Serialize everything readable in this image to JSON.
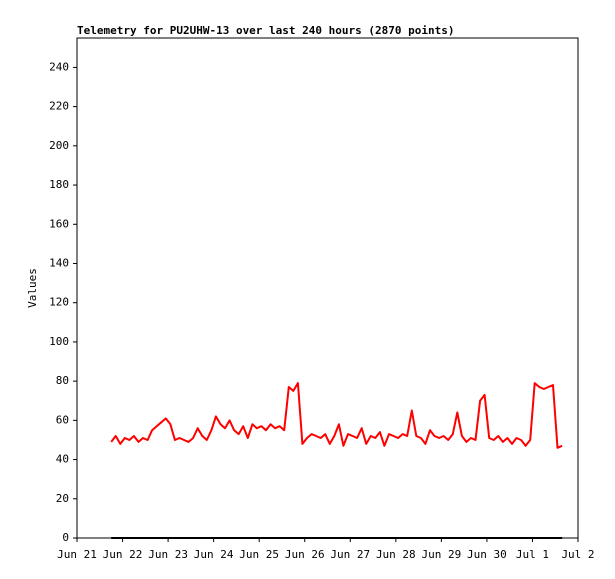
{
  "chart_data": {
    "type": "line",
    "title": "Telemetry for PU2UHW-13 over last 240 hours (2870 points)",
    "y_label": "Values",
    "xlim": [
      21,
      32
    ],
    "xticks": [
      {
        "value": 21,
        "label": "Jun 21"
      },
      {
        "value": 22,
        "label": "Jun 22"
      },
      {
        "value": 23,
        "label": "Jun 23"
      },
      {
        "value": 24,
        "label": "Jun 24"
      },
      {
        "value": 25,
        "label": "Jun 25"
      },
      {
        "value": 26,
        "label": "Jun 26"
      },
      {
        "value": 27,
        "label": "Jun 27"
      },
      {
        "value": 28,
        "label": "Jun 28"
      },
      {
        "value": 29,
        "label": "Jun 29"
      },
      {
        "value": 30,
        "label": "Jun 30"
      },
      {
        "value": 31,
        "label": "Jul 1"
      },
      {
        "value": 32,
        "label": "Jul 2"
      }
    ],
    "ylim": [
      0,
      255
    ],
    "yticks": [
      0,
      20,
      40,
      60,
      80,
      100,
      120,
      140,
      160,
      180,
      200,
      220,
      240
    ],
    "series": [
      {
        "color": "#ff0000",
        "x": [
          21.75,
          21.85,
          21.95,
          22.05,
          22.15,
          22.25,
          22.35,
          22.45,
          22.55,
          22.65,
          22.75,
          22.85,
          22.95,
          23.05,
          23.15,
          23.25,
          23.35,
          23.45,
          23.55,
          23.65,
          23.75,
          23.85,
          23.95,
          24.05,
          24.15,
          24.25,
          24.35,
          24.45,
          24.55,
          24.65,
          24.75,
          24.85,
          24.95,
          25.05,
          25.15,
          25.25,
          25.35,
          25.45,
          25.55,
          25.65,
          25.75,
          25.85,
          25.95,
          26.05,
          26.15,
          26.25,
          26.35,
          26.45,
          26.55,
          26.65,
          26.75,
          26.85,
          26.95,
          27.05,
          27.15,
          27.25,
          27.35,
          27.45,
          27.55,
          27.65,
          27.75,
          27.85,
          27.95,
          28.05,
          28.15,
          28.25,
          28.35,
          28.45,
          28.55,
          28.65,
          28.75,
          28.85,
          28.95,
          29.05,
          29.15,
          29.25,
          29.35,
          29.45,
          29.55,
          29.65,
          29.75,
          29.85,
          29.95,
          30.05,
          30.15,
          30.25,
          30.35,
          30.45,
          30.55,
          30.65,
          30.75,
          30.85,
          30.95,
          31.05,
          31.15,
          31.25,
          31.35,
          31.45,
          31.55,
          31.65
        ],
        "values": [
          49,
          52,
          48,
          51,
          50,
          52,
          49,
          51,
          50,
          55,
          57,
          59,
          61,
          58,
          50,
          51,
          50,
          49,
          51,
          56,
          52,
          50,
          55,
          62,
          58,
          56,
          60,
          55,
          53,
          57,
          51,
          58,
          56,
          57,
          55,
          58,
          56,
          57,
          55,
          77,
          75,
          79,
          48,
          51,
          53,
          52,
          51,
          53,
          48,
          52,
          58,
          47,
          53,
          52,
          51,
          56,
          48,
          52,
          51,
          54,
          47,
          53,
          52,
          51,
          53,
          52,
          65,
          52,
          51,
          48,
          55,
          52,
          51,
          52,
          50,
          53,
          64,
          52,
          49,
          51,
          50,
          70,
          73,
          51,
          50,
          52,
          49,
          51,
          48,
          51,
          50,
          47,
          50,
          79,
          77,
          76,
          77,
          78,
          46,
          47
        ]
      },
      {
        "color": "#000000",
        "x": [
          21.75,
          31.65
        ],
        "values": [
          0,
          0
        ]
      }
    ]
  }
}
